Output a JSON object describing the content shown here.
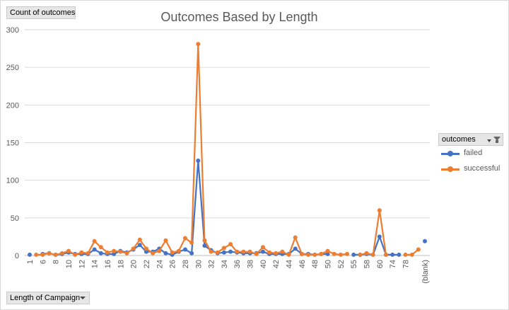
{
  "pivot": {
    "values_field": "Count of outcomes",
    "axis_field": "Length of Campaign",
    "legend_field": "outcomes"
  },
  "colors": {
    "failed": "#4472c4",
    "successful": "#ed7d31",
    "grid": "#d9d9d9",
    "text": "#595959"
  },
  "icons": {
    "axis_dropdown": "chevron-down-icon",
    "legend_filter": "filter-icon"
  },
  "chart_data": {
    "type": "line",
    "title": "Outcomes Based by Length",
    "xlabel": "Length of Campaign",
    "ylabel": "Count of outcomes",
    "ylim": [
      0,
      300
    ],
    "yticks": [
      0,
      50,
      100,
      150,
      200,
      250,
      300
    ],
    "grid": true,
    "legend_position": "right",
    "x": [
      "1",
      "5",
      "6",
      "7",
      "8",
      "9",
      "10",
      "11",
      "12",
      "13",
      "14",
      "15",
      "16",
      "17",
      "18",
      "19",
      "20",
      "21",
      "22",
      "23",
      "24",
      "25",
      "26",
      "27",
      "28",
      "29",
      "30",
      "31",
      "32",
      "33",
      "34",
      "35",
      "36",
      "37",
      "38",
      "39",
      "40",
      "41",
      "42",
      "43",
      "44",
      "45",
      "46",
      "47",
      "48",
      "49",
      "50",
      "51",
      "52",
      "53",
      "55",
      "57",
      "58",
      "59",
      "60",
      "61",
      "74",
      "77",
      "78",
      "80",
      "81",
      "(blank)"
    ],
    "xtick_labels": [
      "1",
      "6",
      "8",
      "10",
      "12",
      "14",
      "16",
      "18",
      "20",
      "22",
      "24",
      "26",
      "28",
      "30",
      "32",
      "34",
      "36",
      "38",
      "40",
      "42",
      "44",
      "46",
      "48",
      "50",
      "52",
      "55",
      "58",
      "60",
      "74",
      "78",
      "(blank)"
    ],
    "series": [
      {
        "name": "failed",
        "values": [
          1,
          null,
          2,
          3,
          1,
          2,
          4,
          2,
          2,
          2,
          8,
          3,
          2,
          2,
          6,
          4,
          8,
          14,
          5,
          5,
          9,
          3,
          1,
          5,
          8,
          3,
          126,
          13,
          7,
          3,
          4,
          5,
          4,
          3,
          3,
          3,
          5,
          2,
          2,
          2,
          2,
          9,
          2,
          2,
          1,
          2,
          2,
          null,
          null,
          null,
          1,
          1,
          2,
          1,
          25,
          1,
          1,
          1,
          null,
          null,
          null,
          19
        ]
      },
      {
        "name": "successful",
        "values": [
          null,
          1,
          1,
          3,
          1,
          3,
          6,
          1,
          4,
          3,
          19,
          11,
          4,
          6,
          5,
          3,
          9,
          21,
          9,
          3,
          6,
          20,
          4,
          6,
          23,
          17,
          281,
          20,
          5,
          4,
          10,
          15,
          5,
          5,
          5,
          2,
          11,
          4,
          3,
          5,
          1,
          24,
          2,
          1,
          1,
          2,
          6,
          2,
          1,
          2,
          null,
          1,
          3,
          1,
          60,
          1,
          null,
          null,
          1,
          1,
          8,
          null
        ]
      }
    ]
  }
}
